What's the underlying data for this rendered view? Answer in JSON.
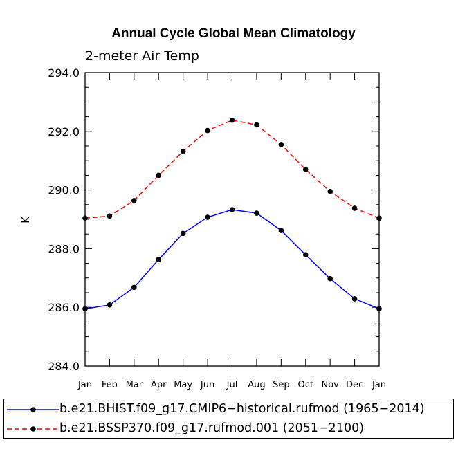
{
  "chart_data": {
    "type": "line",
    "title": "Annual Cycle Global Mean Climatology",
    "subtitle": "2-meter Air Temp",
    "ylabel": "K",
    "xlabel": "",
    "categories": [
      "Jan",
      "Feb",
      "Mar",
      "Apr",
      "May",
      "Jun",
      "Jul",
      "Aug",
      "Sep",
      "Oct",
      "Nov",
      "Dec",
      "Jan"
    ],
    "ylim": [
      284.0,
      294.0
    ],
    "yticks": [
      284.0,
      286.0,
      288.0,
      290.0,
      292.0,
      294.0
    ],
    "ytick_labels": [
      "284.0",
      "286.0",
      "288.0",
      "290.0",
      "292.0",
      "294.0"
    ],
    "grid": false,
    "legend_position": "bottom",
    "series": [
      {
        "name": "b.e21.BHIST.f09_g17.CMIP6−historical.rufmod (1965−2014)",
        "color": "#0000ff",
        "dash": "solid",
        "values": [
          285.95,
          286.08,
          286.68,
          287.63,
          288.52,
          289.07,
          289.33,
          289.21,
          288.62,
          287.79,
          286.98,
          286.29,
          285.95
        ]
      },
      {
        "name": "b.e21.BSSP370.f09_g17.rufmod.001 (2051−2100)",
        "color": "#ff0000",
        "dash": "dashed",
        "values": [
          289.04,
          289.11,
          289.64,
          290.5,
          291.32,
          292.03,
          292.38,
          292.22,
          291.55,
          290.7,
          289.95,
          289.38,
          289.04
        ]
      }
    ]
  }
}
